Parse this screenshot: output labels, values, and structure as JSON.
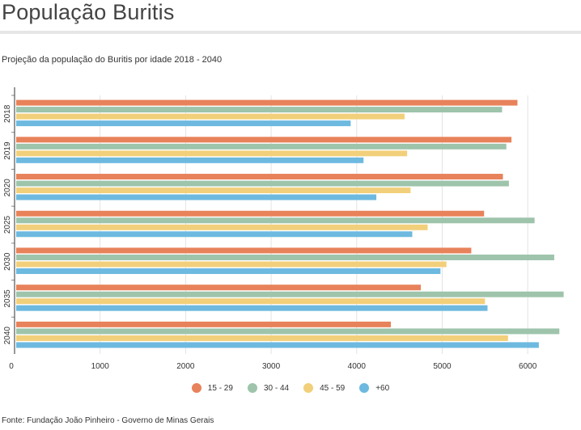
{
  "header": {
    "title": "População Buritis",
    "subtitle": "Projeção da população do Buritis por idade 2018 - 2040"
  },
  "footer": {
    "source": "Fonte: Fundação João Pinheiro - Governo de Minas Gerais"
  },
  "chart_data": {
    "type": "bar",
    "orientation": "horizontal",
    "categories": [
      "2018",
      "2019",
      "2020",
      "2025",
      "2030",
      "2035",
      "2040"
    ],
    "series": [
      {
        "name": "15 - 29",
        "color": "#e8825a",
        "values": [
          5880,
          5810,
          5710,
          5490,
          5340,
          4750,
          4400
        ]
      },
      {
        "name": "30 - 44",
        "color": "#9ec4ab",
        "values": [
          5700,
          5750,
          5780,
          6080,
          6310,
          6420,
          6370
        ]
      },
      {
        "name": "45 - 59",
        "color": "#f2cf7a",
        "values": [
          4560,
          4590,
          4630,
          4830,
          5050,
          5500,
          5770
        ]
      },
      {
        "name": "+60",
        "color": "#6db9e0",
        "values": [
          3930,
          4080,
          4230,
          4650,
          4980,
          5530,
          6130
        ]
      }
    ],
    "xticks": [
      "0",
      "1000",
      "2000",
      "3000",
      "4000",
      "5000",
      "6000"
    ],
    "xlim": [
      0,
      6500
    ],
    "grid": true,
    "legend_position": "bottom"
  }
}
